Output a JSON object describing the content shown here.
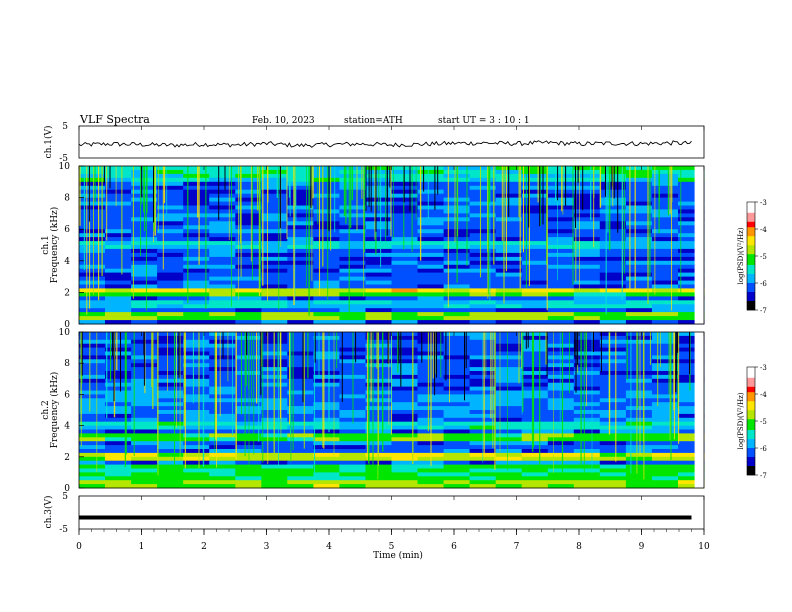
{
  "header": {
    "title": "VLF  Spectra",
    "date": "Feb. 10, 2023",
    "station": "station=ATH",
    "start": "start  UT  =   3  : 10 : 1"
  },
  "chart_data": [
    {
      "type": "line",
      "name": "ch1_waveform",
      "ylabel": "ch.1(V)",
      "ylim": [
        -5,
        5
      ],
      "yticks": [
        5,
        -5
      ],
      "x": [
        0,
        0.5,
        1,
        1.5,
        2,
        2.5,
        3,
        3.5,
        4,
        4.5,
        5,
        5.5,
        6,
        6.5,
        7,
        7.5,
        8,
        8.5,
        9,
        9.5,
        9.8
      ],
      "values": [
        -0.9,
        -0.6,
        -0.8,
        -1.0,
        -0.7,
        -0.9,
        -0.5,
        -1.1,
        -0.8,
        -0.6,
        -0.9,
        -0.7,
        -0.4,
        -0.3,
        -0.5,
        -0.2,
        -0.6,
        -0.4,
        -0.5,
        -0.3,
        -0.4
      ]
    },
    {
      "type": "heatmap",
      "name": "ch1_spectrogram",
      "ylabel": "ch.1\nFrequency  (kHz)",
      "ylim": [
        0,
        10
      ],
      "yticks": [
        10,
        8,
        6,
        4,
        2,
        0
      ],
      "colorbar": {
        "label": "log(PSD)(V²/Hz)",
        "ticks": [
          "-3",
          "-4",
          "-5",
          "-6",
          "-7"
        ],
        "range": [
          -7,
          -3
        ]
      }
    },
    {
      "type": "heatmap",
      "name": "ch2_spectrogram",
      "ylabel": "ch.2\nFrequency  (kHz)",
      "ylim": [
        0,
        10
      ],
      "yticks": [
        10,
        8,
        6,
        4,
        2,
        0
      ],
      "colorbar": {
        "label": "log(PSD)(V²/Hz)",
        "ticks": [
          "-3",
          "-4",
          "-5",
          "-6",
          "-7"
        ],
        "range": [
          -7,
          -3
        ]
      }
    },
    {
      "type": "line",
      "name": "ch3_waveform",
      "ylabel": "ch.3(V)",
      "ylim": [
        -5,
        5
      ],
      "yticks": [
        5,
        -5
      ],
      "x": [
        0,
        9.8
      ],
      "values": [
        -1.5,
        -1.5
      ]
    }
  ],
  "xaxis": {
    "label": "Time  (min)",
    "range": [
      0,
      10
    ],
    "ticks": [
      "0",
      "1",
      "2",
      "3",
      "4",
      "5",
      "6",
      "7",
      "8",
      "9",
      "10"
    ]
  },
  "colors": {
    "colormap": [
      "#000000",
      "#0000c8",
      "#0050ff",
      "#00b4ff",
      "#00e6c8",
      "#00e600",
      "#b4e600",
      "#ffe600",
      "#ff9600",
      "#ff0000",
      "#ffffff"
    ]
  }
}
